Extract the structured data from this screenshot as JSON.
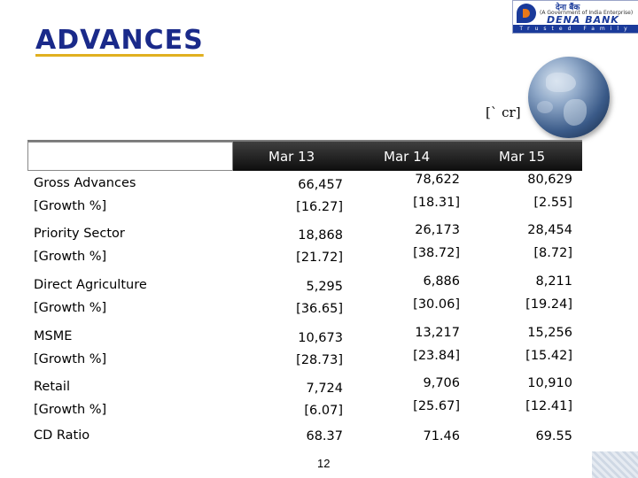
{
  "title": "ADVANCES",
  "logo": {
    "hindi": "देना बैंक",
    "govt_line": "(A Government of India Enterprise)",
    "bank_name": "DENA BANK",
    "tagline": "Trusted Family Bank"
  },
  "unit": "[` cr]",
  "table": {
    "columns": [
      "Mar 13",
      "Mar 14",
      "Mar 15"
    ],
    "rows": [
      {
        "label": "Gross Advances",
        "sub_label": "[Growth %]",
        "values": [
          "66,457",
          "78,622",
          "80,629"
        ],
        "growth": [
          "[16.27]",
          "[18.31]",
          "[2.55]"
        ]
      },
      {
        "label": "Priority Sector",
        "sub_label": "[Growth %]",
        "values": [
          "18,868",
          "26,173",
          "28,454"
        ],
        "growth": [
          "[21.72]",
          "[38.72]",
          "[8.72]"
        ]
      },
      {
        "label": "Direct Agriculture",
        "sub_label": "[Growth %]",
        "values": [
          "5,295",
          "6,886",
          "8,211"
        ],
        "growth": [
          "[36.65]",
          "[30.06]",
          "[19.24]"
        ]
      },
      {
        "label": "MSME",
        "sub_label": "[Growth %]",
        "values": [
          "10,673",
          "13,217",
          "15,256"
        ],
        "growth": [
          "[28.73]",
          "[23.84]",
          "[15.42]"
        ]
      },
      {
        "label": "Retail",
        "sub_label": "[Growth %]",
        "values": [
          "7,724",
          "9,706",
          "10,910"
        ],
        "growth": [
          "[6.07]",
          "[25.67]",
          "[12.41]"
        ]
      },
      {
        "label": "CD Ratio",
        "values": [
          "68.37",
          "71.46",
          "69.55"
        ]
      }
    ]
  },
  "page_number": "12"
}
